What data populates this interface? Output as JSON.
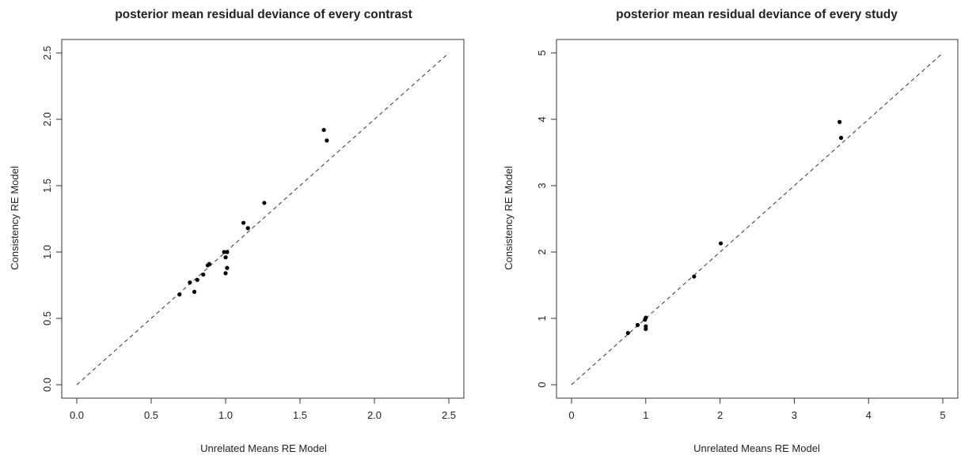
{
  "chart_data": [
    {
      "type": "scatter",
      "title": "posterior mean residual deviance of every contrast",
      "xlabel": "Unrelated Means RE Model",
      "ylabel": "Consistency RE Model",
      "xlim": [
        0,
        2.5
      ],
      "ylim": [
        0,
        2.5
      ],
      "xticks": [
        "0.0",
        "0.5",
        "1.0",
        "1.5",
        "2.0",
        "2.5"
      ],
      "yticks": [
        "0.0",
        "0.5",
        "1.0",
        "1.5",
        "2.0",
        "2.5"
      ],
      "reference_line": "dashed diagonal y = x",
      "points": [
        {
          "x": 0.69,
          "y": 0.68
        },
        {
          "x": 0.76,
          "y": 0.77
        },
        {
          "x": 0.79,
          "y": 0.7
        },
        {
          "x": 0.81,
          "y": 0.79
        },
        {
          "x": 0.85,
          "y": 0.83
        },
        {
          "x": 0.88,
          "y": 0.9
        },
        {
          "x": 0.89,
          "y": 0.91
        },
        {
          "x": 0.99,
          "y": 1.0
        },
        {
          "x": 1.0,
          "y": 0.96
        },
        {
          "x": 1.01,
          "y": 1.0
        },
        {
          "x": 1.01,
          "y": 0.88
        },
        {
          "x": 1.0,
          "y": 0.84
        },
        {
          "x": 1.12,
          "y": 1.22
        },
        {
          "x": 1.15,
          "y": 1.18
        },
        {
          "x": 1.26,
          "y": 1.37
        },
        {
          "x": 1.66,
          "y": 1.92
        },
        {
          "x": 1.68,
          "y": 1.84
        }
      ]
    },
    {
      "type": "scatter",
      "title": "posterior mean residual deviance of every study",
      "xlabel": "Unrelated Means RE Model",
      "ylabel": "Consistency RE Model",
      "xlim": [
        0,
        5
      ],
      "ylim": [
        0,
        5
      ],
      "xticks": [
        "0",
        "1",
        "2",
        "3",
        "4",
        "5"
      ],
      "yticks": [
        "0",
        "1",
        "2",
        "3",
        "4",
        "5"
      ],
      "reference_line": "dashed diagonal y = x",
      "points": [
        {
          "x": 0.76,
          "y": 0.78
        },
        {
          "x": 0.89,
          "y": 0.9
        },
        {
          "x": 0.99,
          "y": 0.98
        },
        {
          "x": 1.0,
          "y": 1.01
        },
        {
          "x": 1.0,
          "y": 0.88
        },
        {
          "x": 1.0,
          "y": 0.84
        },
        {
          "x": 1.65,
          "y": 1.63
        },
        {
          "x": 2.01,
          "y": 2.13
        },
        {
          "x": 3.61,
          "y": 3.96
        },
        {
          "x": 3.63,
          "y": 3.72
        }
      ]
    }
  ]
}
